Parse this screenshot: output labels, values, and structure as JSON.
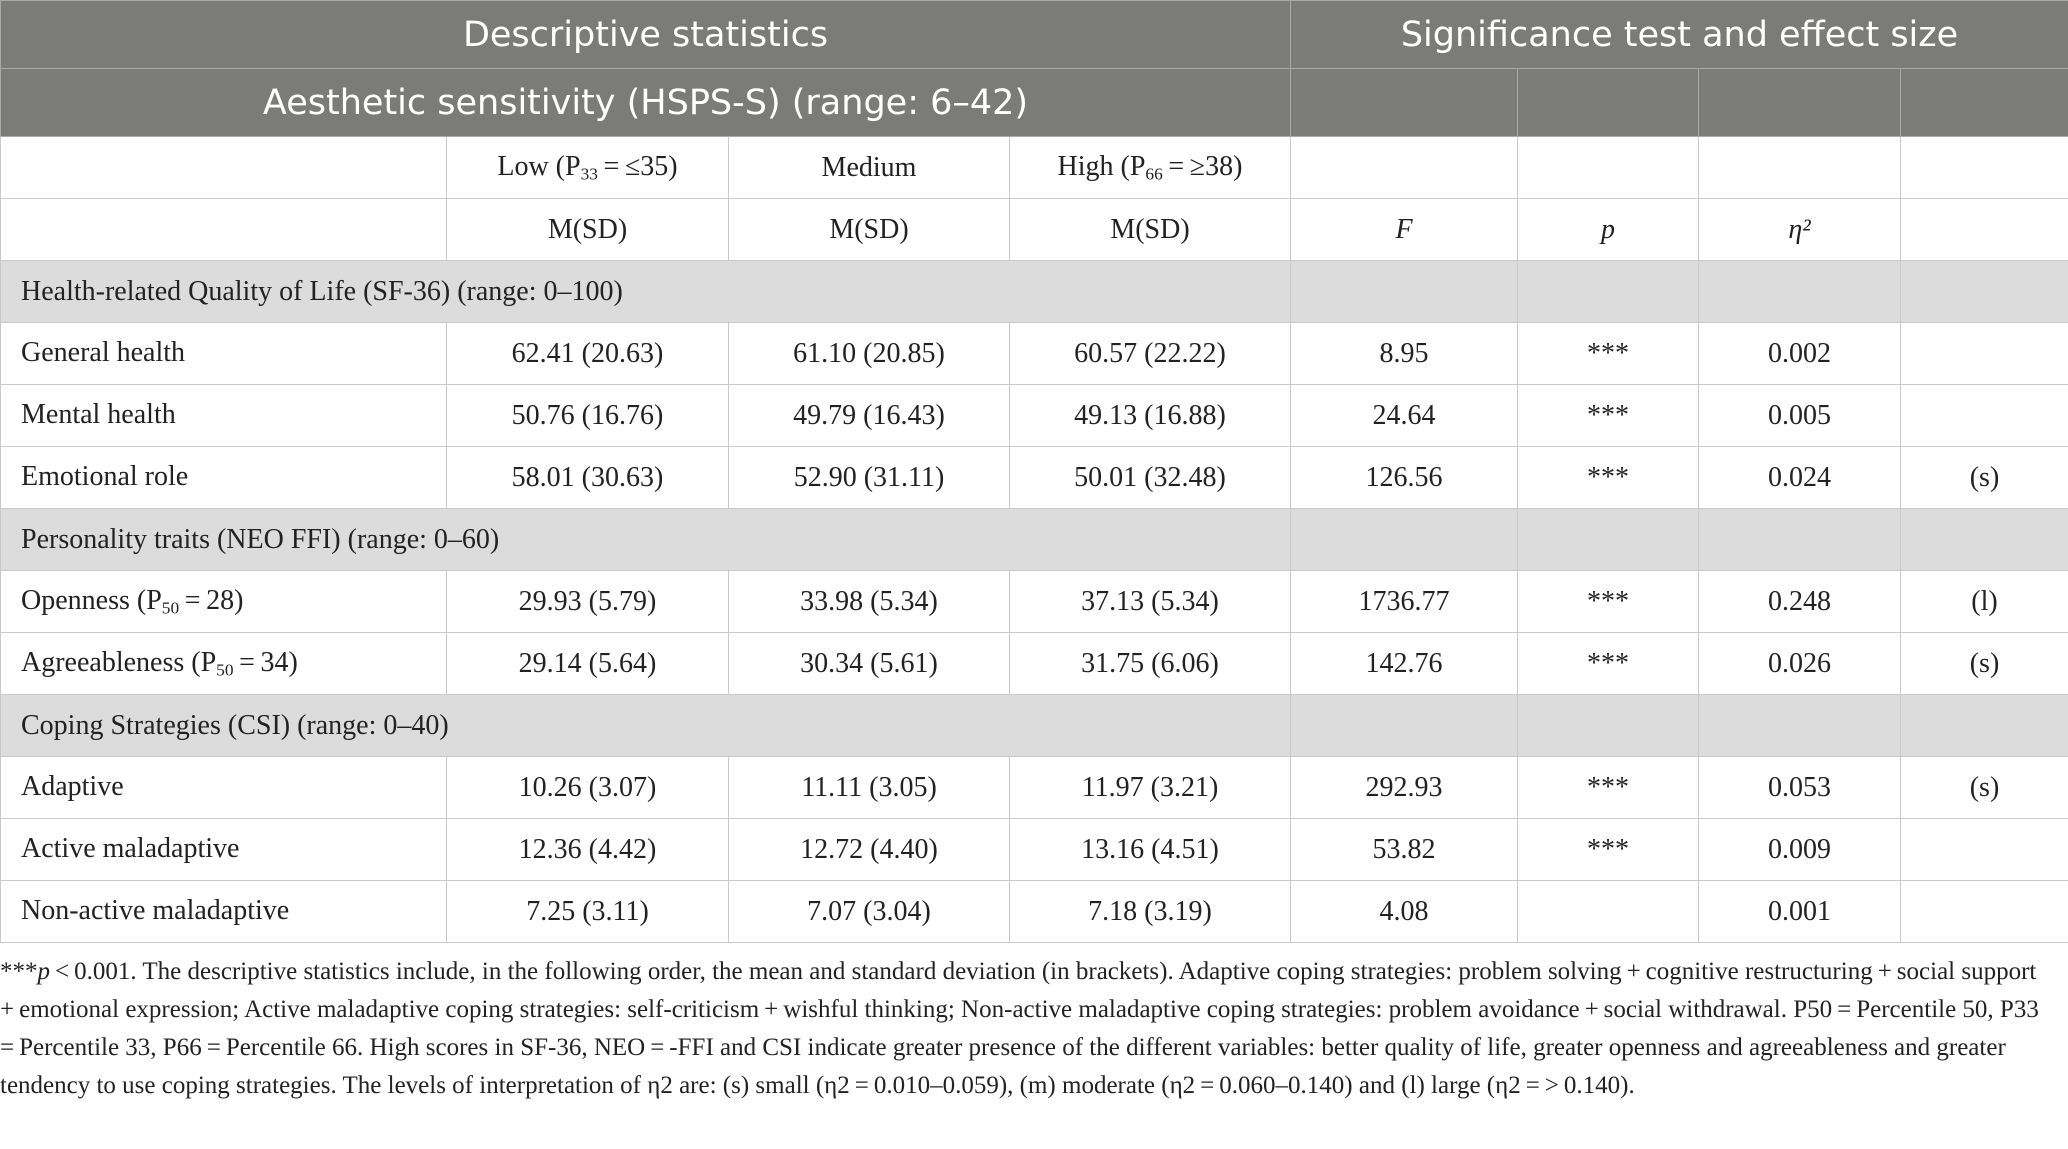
{
  "header": {
    "descriptive": "Descriptive statistics",
    "significance": "Significance test and effect size",
    "scale_title": "Aesthetic sensitivity (HSPS-S) (range: 6–42)"
  },
  "groups": {
    "low_prefix": "Low (P",
    "low_sub": "33",
    "low_suffix": " = ≤35)",
    "medium": "Medium",
    "high_prefix": "High (P",
    "high_sub": "66",
    "high_suffix": " = ≥38)"
  },
  "stat_labels": {
    "msd": "M(SD)",
    "f": "F",
    "p": "p",
    "eta": "η²"
  },
  "sections": [
    {
      "title": "Health-related Quality of Life (SF-36) (range: 0–100)",
      "rows": [
        {
          "label": "General health",
          "label_sub": "",
          "label_suffix": "",
          "low": "62.41 (20.63)",
          "medium": "61.10 (20.85)",
          "high": "60.57 (22.22)",
          "f": "8.95",
          "p": "***",
          "eta": "0.002",
          "size": ""
        },
        {
          "label": "Mental health",
          "label_sub": "",
          "label_suffix": "",
          "low": "50.76 (16.76)",
          "medium": "49.79 (16.43)",
          "high": "49.13 (16.88)",
          "f": "24.64",
          "p": "***",
          "eta": "0.005",
          "size": ""
        },
        {
          "label": "Emotional role",
          "label_sub": "",
          "label_suffix": "",
          "low": "58.01 (30.63)",
          "medium": "52.90 (31.11)",
          "high": "50.01 (32.48)",
          "f": "126.56",
          "p": "***",
          "eta": "0.024",
          "size": "(s)"
        }
      ]
    },
    {
      "title": "Personality traits (NEO FFI) (range: 0–60)",
      "rows": [
        {
          "label": "Openness (P",
          "label_sub": "50",
          "label_suffix": " = 28)",
          "low": "29.93 (5.79)",
          "medium": "33.98 (5.34)",
          "high": "37.13 (5.34)",
          "f": "1736.77",
          "p": "***",
          "eta": "0.248",
          "size": "(l)"
        },
        {
          "label": "Agreeableness (P",
          "label_sub": "50",
          "label_suffix": " = 34)",
          "low": "29.14 (5.64)",
          "medium": "30.34 (5.61)",
          "high": "31.75 (6.06)",
          "f": "142.76",
          "p": "***",
          "eta": "0.026",
          "size": "(s)"
        }
      ]
    },
    {
      "title": "Coping Strategies (CSI) (range: 0–40)",
      "rows": [
        {
          "label": "Adaptive",
          "label_sub": "",
          "label_suffix": "",
          "low": "10.26 (3.07)",
          "medium": "11.11 (3.05)",
          "high": "11.97 (3.21)",
          "f": "292.93",
          "p": "***",
          "eta": "0.053",
          "size": "(s)"
        },
        {
          "label": "Active maladaptive",
          "label_sub": "",
          "label_suffix": "",
          "low": "12.36 (4.42)",
          "medium": "12.72 (4.40)",
          "high": "13.16 (4.51)",
          "f": "53.82",
          "p": "***",
          "eta": "0.009",
          "size": ""
        },
        {
          "label": "Non-active maladaptive",
          "label_sub": "",
          "label_suffix": "",
          "low": "7.25 (3.11)",
          "medium": "7.07 (3.04)",
          "high": "7.18 (3.19)",
          "f": "4.08",
          "p": "",
          "eta": "0.001",
          "size": ""
        }
      ]
    }
  ],
  "footnote": {
    "stars": "***",
    "p_symbol": "p",
    "text": " < 0.001. The descriptive statistics include, in the following order, the mean and standard deviation (in brackets). Adaptive coping strategies: problem solving + cognitive restructuring + social support + emotional expression; Active maladaptive coping strategies: self-criticism + wishful thinking; Non-active maladaptive coping strategies: problem avoidance + social withdrawal. P50 = Percentile 50, P33 = Percentile 33, P66 = Percentile 66. High scores in SF-36, NEO = -FFI and CSI indicate greater presence of the different variables: better quality of life, greater openness and agreeableness and greater tendency to use coping strategies. The levels of interpretation of η2 are: (s) small (η2 = 0.010–0.059), (m) moderate (η2 = 0.060–0.140) and (l) large (η2 = > 0.140)."
  }
}
